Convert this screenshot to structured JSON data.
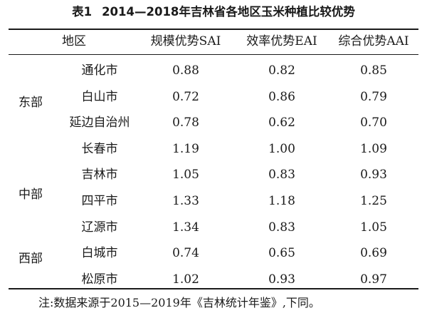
{
  "title": {
    "number": "表1",
    "text": "2014—2018年吉林省各地区玉米种植比较优势"
  },
  "table": {
    "headers": [
      "地区",
      "规模优势SAI",
      "效率优势EAI",
      "综合优势AAI"
    ],
    "regions": [
      {
        "name": "东部",
        "rows": [
          {
            "city": "通化市",
            "sai": "0.88",
            "eai": "0.82",
            "aai": "0.85"
          },
          {
            "city": "白山市",
            "sai": "0.72",
            "eai": "0.86",
            "aai": "0.79"
          },
          {
            "city": "延边自治州",
            "sai": "0.78",
            "eai": "0.62",
            "aai": "0.70"
          }
        ]
      },
      {
        "name": "中部",
        "rows": [
          {
            "city": "长春市",
            "sai": "1.19",
            "eai": "1.00",
            "aai": "1.09"
          },
          {
            "city": "吉林市",
            "sai": "1.05",
            "eai": "0.83",
            "aai": "0.93"
          },
          {
            "city": "四平市",
            "sai": "1.33",
            "eai": "1.18",
            "aai": "1.25"
          },
          {
            "city": "辽源市",
            "sai": "1.34",
            "eai": "0.83",
            "aai": "1.05"
          }
        ]
      },
      {
        "name": "西部",
        "rows": [
          {
            "city": "白城市",
            "sai": "0.74",
            "eai": "0.65",
            "aai": "0.69"
          },
          {
            "city": "松原市",
            "sai": "1.02",
            "eai": "0.93",
            "aai": "0.97"
          }
        ]
      }
    ]
  },
  "note": "注:数据来源于2015—2019年《吉林统计年鉴》,下同。"
}
